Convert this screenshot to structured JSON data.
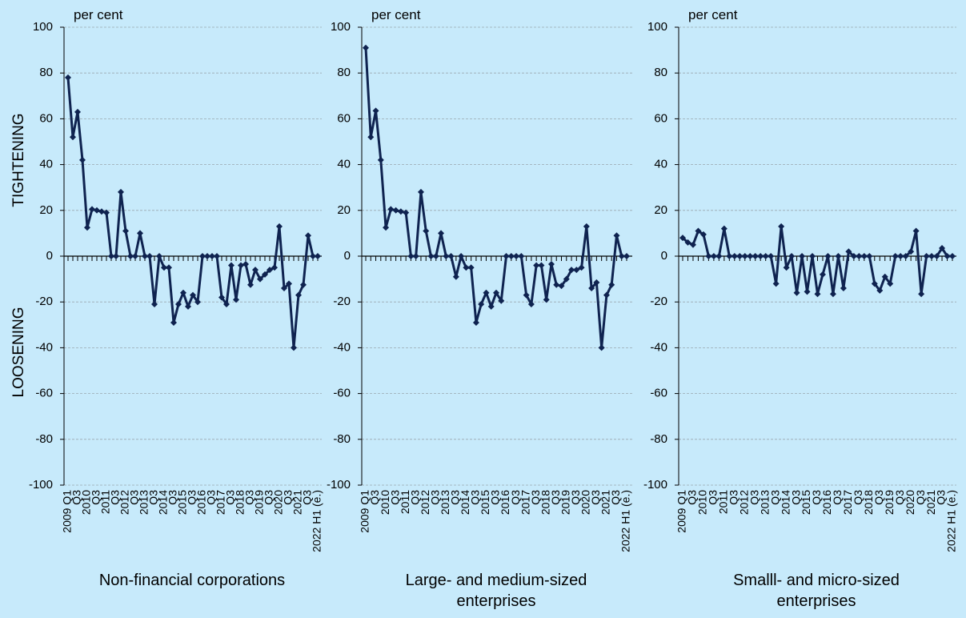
{
  "chart_data": [
    {
      "type": "line",
      "title": "Non-financial corporations",
      "ylabel": "per cent",
      "annotations": [
        "TIGHTENING",
        "LOOSENING"
      ],
      "categories": [
        "2009 Q1",
        null,
        "Q3",
        null,
        "2010",
        null,
        "Q3",
        null,
        "2011",
        null,
        "Q3",
        null,
        "2012",
        null,
        "Q3",
        null,
        "2013",
        null,
        "Q3",
        null,
        "2014",
        null,
        "Q3",
        null,
        "2015",
        null,
        "Q3",
        null,
        "2016",
        null,
        "Q3",
        null,
        "2017",
        null,
        "Q3",
        null,
        "2018",
        null,
        "Q3",
        null,
        "2019",
        null,
        "Q3",
        null,
        "2020",
        null,
        "Q3",
        null,
        "2021",
        null,
        "Q3",
        null,
        "2022 H1 (e.)"
      ],
      "values": [
        78,
        52,
        63,
        42,
        12.5,
        20.5,
        20,
        19.5,
        19,
        0,
        0,
        28,
        11,
        0,
        0,
        10,
        0,
        0,
        -21,
        0,
        -5,
        -5,
        -29,
        -21,
        -16,
        -22,
        -17,
        -20,
        0,
        0,
        0,
        0,
        -18,
        -21,
        -4,
        -19,
        -4,
        -3.5,
        -12.5,
        -6,
        -10,
        -8,
        -6,
        -5,
        13,
        -14,
        -12,
        -40,
        -17,
        -12.5,
        9,
        0,
        0
      ],
      "color": "#0f2350",
      "ylim": [
        -100,
        100
      ],
      "yticks": [
        -100,
        -80,
        -60,
        -40,
        -20,
        0,
        20,
        40,
        60,
        80,
        100
      ],
      "grid": true
    },
    {
      "type": "line",
      "title": "Large- and medium-sized enterprises",
      "ylabel": "per cent",
      "categories": [
        "2009 Q1",
        null,
        "Q3",
        null,
        "2010",
        null,
        "Q3",
        null,
        "2011",
        null,
        "Q3",
        null,
        "2012",
        null,
        "Q3",
        null,
        "2013",
        null,
        "Q3",
        null,
        "2014",
        null,
        "Q3",
        null,
        "2015",
        null,
        "Q3",
        null,
        "2016",
        null,
        "Q3",
        null,
        "2017",
        null,
        "Q3",
        null,
        "2018",
        null,
        "Q3",
        null,
        "2019",
        null,
        "Q3",
        null,
        "2020",
        null,
        "Q3",
        null,
        "2021",
        null,
        "Q3",
        null,
        "2022 H1 (e.)"
      ],
      "values": [
        91,
        52,
        63.5,
        42,
        12.5,
        20.5,
        20,
        19.5,
        19,
        0,
        0,
        28,
        11,
        0,
        0,
        10,
        0,
        0,
        -9,
        0,
        -5,
        -5,
        -29,
        -21,
        -16,
        -22,
        -16,
        -19.5,
        0,
        0,
        0,
        0,
        -17,
        -21,
        -4,
        -4,
        -19,
        -3.5,
        -12.5,
        -13,
        -10,
        -6,
        -6,
        -5,
        13,
        -14,
        -11.5,
        -40,
        -17,
        -12.5,
        9,
        0,
        0
      ],
      "color": "#0f2350",
      "ylim": [
        -100,
        100
      ],
      "yticks": [
        -100,
        -80,
        -60,
        -40,
        -20,
        0,
        20,
        40,
        60,
        80,
        100
      ],
      "grid": true
    },
    {
      "type": "line",
      "title": "Smalll- and micro-sized enterprises",
      "ylabel": "per cent",
      "categories": [
        "2009 Q1",
        null,
        "Q3",
        null,
        "2010",
        null,
        "Q3",
        null,
        "2011",
        null,
        "Q3",
        null,
        "2012",
        null,
        "Q3",
        null,
        "2013",
        null,
        "Q3",
        null,
        "2014",
        null,
        "Q3",
        null,
        "2015",
        null,
        "Q3",
        null,
        "2016",
        null,
        "Q3",
        null,
        "2017",
        null,
        "Q3",
        null,
        "2018",
        null,
        "Q3",
        null,
        "2019",
        null,
        "Q3",
        null,
        "2020",
        null,
        "Q3",
        null,
        "2021",
        null,
        "Q3",
        null,
        "2022 H1 (e.)"
      ],
      "values": [
        8,
        6,
        5,
        11,
        9.5,
        0,
        0,
        0,
        12,
        0,
        0,
        0,
        0,
        0,
        0,
        0,
        0,
        0,
        -12,
        13,
        -5,
        0,
        -16,
        0,
        -15.5,
        0,
        -16.5,
        -8,
        0,
        -16.5,
        0,
        -14,
        2,
        0,
        0,
        0,
        0,
        -12,
        -15,
        -9,
        -12,
        0,
        0,
        0,
        2,
        11,
        -16.5,
        0,
        0,
        0,
        3.5,
        0,
        0
      ],
      "color": "#0f2350",
      "ylim": [
        -100,
        100
      ],
      "yticks": [
        -100,
        -80,
        -60,
        -40,
        -20,
        0,
        20,
        40,
        60,
        80,
        100
      ],
      "grid": true
    }
  ]
}
